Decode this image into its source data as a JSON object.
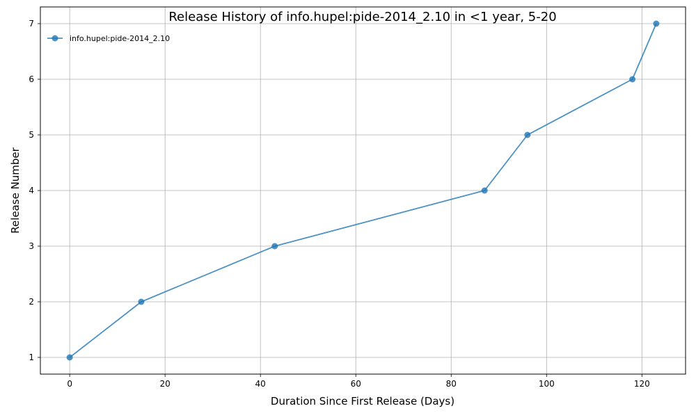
{
  "chart_data": {
    "type": "line",
    "title": "Release History of info.hupel:pide-2014_2.10 in <1 year, 5-20",
    "xlabel": "Duration Since First Release (Days)",
    "ylabel": "Release Number",
    "xlim": [
      -6.15,
      129.15
    ],
    "ylim": [
      0.7,
      7.3
    ],
    "xticks": [
      0,
      20,
      40,
      60,
      80,
      100,
      120
    ],
    "yticks": [
      1,
      2,
      3,
      4,
      5,
      6,
      7
    ],
    "grid": true,
    "legend_position": "top-left",
    "series": [
      {
        "name": "info.hupel:pide-2014_2.10",
        "color": "#1f77b4",
        "x": [
          0,
          15,
          43,
          87,
          96,
          118,
          123
        ],
        "y": [
          1,
          2,
          3,
          4,
          5,
          6,
          7
        ]
      }
    ]
  }
}
